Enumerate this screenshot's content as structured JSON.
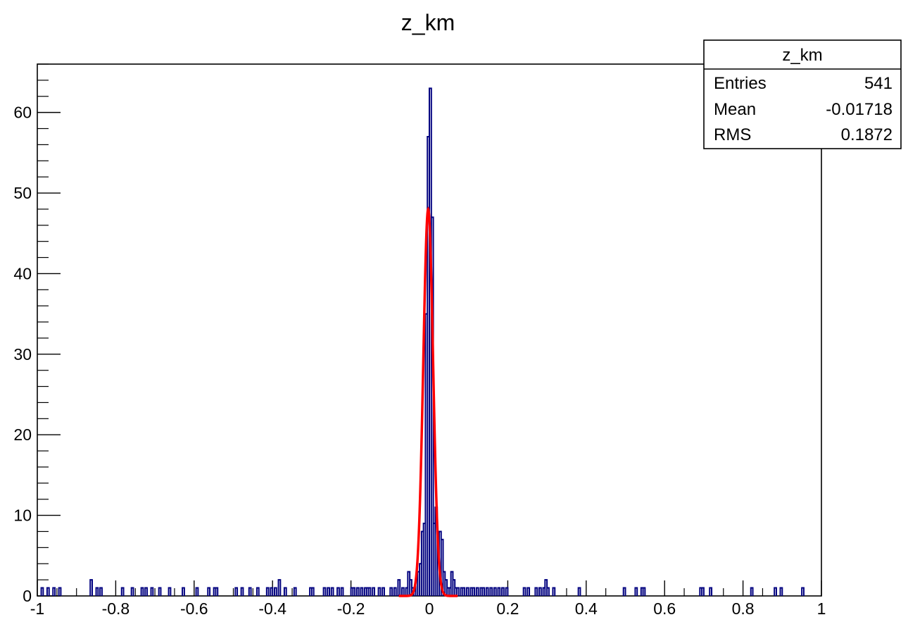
{
  "chart_data": {
    "type": "histogram",
    "title": "z_km",
    "xlabel": "",
    "ylabel": "",
    "xlim": [
      -1,
      1
    ],
    "ylim": [
      0,
      66
    ],
    "grid": false,
    "x_ticks": [
      -1,
      -0.8,
      -0.6,
      -0.4,
      -0.2,
      0,
      0.2,
      0.4,
      0.6,
      0.8,
      1
    ],
    "x_tick_labels": [
      "-1",
      "-0.8",
      "-0.6",
      "-0.4",
      "-0.2",
      "0",
      "0.2",
      "0.4",
      "0.6",
      "0.8",
      "1"
    ],
    "y_ticks": [
      0,
      10,
      20,
      30,
      40,
      50,
      60
    ],
    "y_tick_labels": [
      "0",
      "10",
      "20",
      "30",
      "40",
      "50",
      "60"
    ],
    "bin_width": 0.005,
    "histogram_color": "#00007f",
    "fit_color": "#ff0000",
    "bins": [
      [
        -0.99,
        1
      ],
      [
        -0.975,
        1
      ],
      [
        -0.96,
        1
      ],
      [
        -0.945,
        1
      ],
      [
        -0.865,
        2
      ],
      [
        -0.85,
        1
      ],
      [
        -0.84,
        1
      ],
      [
        -0.785,
        1
      ],
      [
        -0.76,
        1
      ],
      [
        -0.735,
        1
      ],
      [
        -0.725,
        1
      ],
      [
        -0.71,
        1
      ],
      [
        -0.69,
        1
      ],
      [
        -0.665,
        1
      ],
      [
        -0.63,
        1
      ],
      [
        -0.595,
        1
      ],
      [
        -0.565,
        1
      ],
      [
        -0.55,
        1
      ],
      [
        -0.545,
        1
      ],
      [
        -0.495,
        1
      ],
      [
        -0.48,
        1
      ],
      [
        -0.46,
        1
      ],
      [
        -0.44,
        1
      ],
      [
        -0.415,
        1
      ],
      [
        -0.405,
        1
      ],
      [
        -0.395,
        1
      ],
      [
        -0.385,
        2
      ],
      [
        -0.37,
        1
      ],
      [
        -0.345,
        1
      ],
      [
        -0.305,
        1
      ],
      [
        -0.3,
        1
      ],
      [
        -0.27,
        1
      ],
      [
        -0.26,
        1
      ],
      [
        -0.25,
        1
      ],
      [
        -0.235,
        1
      ],
      [
        -0.225,
        1
      ],
      [
        -0.2,
        1
      ],
      [
        -0.195,
        1
      ],
      [
        -0.185,
        1
      ],
      [
        -0.175,
        1
      ],
      [
        -0.165,
        1
      ],
      [
        -0.16,
        1
      ],
      [
        -0.155,
        1
      ],
      [
        -0.145,
        1
      ],
      [
        -0.13,
        1
      ],
      [
        -0.12,
        1
      ],
      [
        -0.1,
        1
      ],
      [
        -0.09,
        1
      ],
      [
        -0.08,
        2
      ],
      [
        -0.07,
        1
      ],
      [
        -0.06,
        1
      ],
      [
        -0.055,
        3
      ],
      [
        -0.05,
        2
      ],
      [
        -0.045,
        1
      ],
      [
        -0.04,
        1
      ],
      [
        -0.035,
        2
      ],
      [
        -0.03,
        3
      ],
      [
        -0.025,
        4
      ],
      [
        -0.02,
        8
      ],
      [
        -0.015,
        9
      ],
      [
        -0.01,
        35
      ],
      [
        -0.005,
        57
      ],
      [
        0,
        63
      ],
      [
        0.005,
        47
      ],
      [
        0.01,
        9
      ],
      [
        0.015,
        11
      ],
      [
        0.02,
        8
      ],
      [
        0.025,
        8
      ],
      [
        0.03,
        7
      ],
      [
        0.035,
        3
      ],
      [
        0.04,
        2
      ],
      [
        0.045,
        1
      ],
      [
        0.05,
        1
      ],
      [
        0.055,
        3
      ],
      [
        0.06,
        2
      ],
      [
        0.065,
        1
      ],
      [
        0.07,
        1
      ],
      [
        0.08,
        1
      ],
      [
        0.085,
        1
      ],
      [
        0.095,
        1
      ],
      [
        0.105,
        1
      ],
      [
        0.11,
        1
      ],
      [
        0.12,
        1
      ],
      [
        0.13,
        1
      ],
      [
        0.135,
        1
      ],
      [
        0.145,
        1
      ],
      [
        0.155,
        1
      ],
      [
        0.165,
        1
      ],
      [
        0.175,
        1
      ],
      [
        0.185,
        1
      ],
      [
        0.195,
        1
      ],
      [
        0.24,
        1
      ],
      [
        0.25,
        1
      ],
      [
        0.27,
        1
      ],
      [
        0.28,
        1
      ],
      [
        0.29,
        1
      ],
      [
        0.295,
        2
      ],
      [
        0.3,
        1
      ],
      [
        0.315,
        1
      ],
      [
        0.38,
        1
      ],
      [
        0.495,
        1
      ],
      [
        0.525,
        1
      ],
      [
        0.54,
        1
      ],
      [
        0.545,
        1
      ],
      [
        0.69,
        1
      ],
      [
        0.695,
        1
      ],
      [
        0.715,
        1
      ],
      [
        0.82,
        1
      ],
      [
        0.88,
        1
      ],
      [
        0.895,
        1
      ],
      [
        0.95,
        1
      ]
    ],
    "fit": {
      "type": "gaussian",
      "amplitude": 48,
      "mean": -0.003,
      "sigma": 0.0125
    },
    "stats_box": {
      "title": "z_km",
      "entries_label": "Entries",
      "entries_value": "541",
      "mean_label": "Mean",
      "mean_value": "-0.01718",
      "rms_label": "RMS",
      "rms_value": "0.1872"
    }
  }
}
